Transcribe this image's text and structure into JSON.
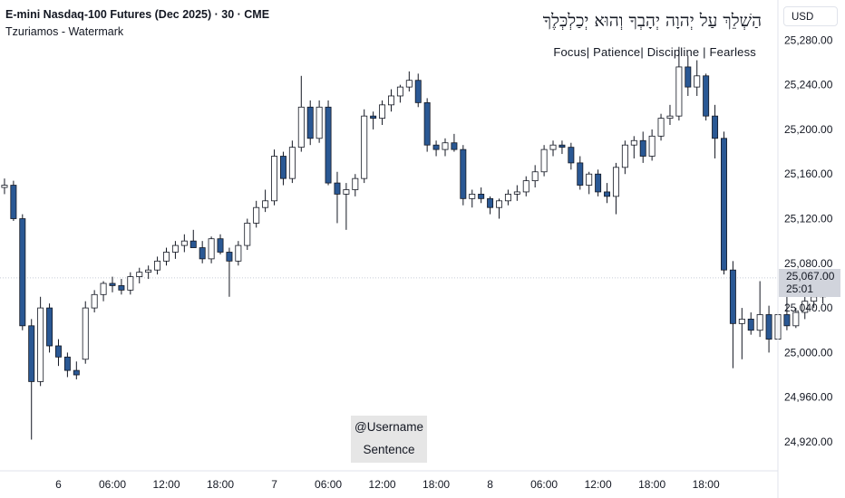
{
  "header": {
    "title": "E-mini Nasdaq-100 Futures (Dec 2025) · 30 · CME",
    "subtitle": "Tzuriamos - Watermark",
    "hebrew_text": "הַשְׁלֵךְ עַל יְהוָה יְהָבְךָ וְהוּא יְכַלְכְּלֶךָ",
    "motto": "Focus| Patience| Discipline | Fearless"
  },
  "price_scale": {
    "currency": "USD",
    "current_price": "25,067.00",
    "countdown": "25:01"
  },
  "watermark": {
    "line1": "@Username",
    "line2": "Sentence"
  },
  "colors": {
    "down_candle": "#2a5894",
    "up_candle": "#ffffff",
    "wick": "#131722",
    "grid": "#f0f3fa"
  },
  "chart_data": {
    "type": "candlestick",
    "title": "E-mini Nasdaq-100 Futures (Dec 2025) · 30 · CME",
    "y_axis": {
      "ticks": [
        24920,
        24960,
        25000,
        25040,
        25080,
        25120,
        25160,
        25200,
        25240,
        25280
      ],
      "tick_labels": [
        "24,920.00",
        "24,960.00",
        "25,000.00",
        "25,040.00",
        "25,080.00",
        "25,120.00",
        "25,160.00",
        "25,200.00",
        "25,240.00",
        "25,280.00"
      ],
      "ylim": [
        24894,
        25316
      ]
    },
    "x_axis": {
      "ticks": [
        6,
        12,
        18,
        24,
        30,
        36,
        42,
        48,
        54,
        60,
        66,
        72,
        78
      ],
      "tick_labels": [
        "6",
        "06:00",
        "12:00",
        "18:00",
        "7",
        "06:00",
        "12:00",
        "18:00",
        "8",
        "06:00",
        "12:00",
        "18:00",
        "18:00"
      ],
      "xlim": [
        -0.5,
        86
      ],
      "bar_interval": "30 min"
    },
    "current_price": 25067,
    "candles": [
      {
        "o": 25148,
        "h": 25156,
        "l": 25142,
        "c": 25150
      },
      {
        "o": 25150,
        "h": 25154,
        "l": 25118,
        "c": 25120
      },
      {
        "o": 25120,
        "h": 25124,
        "l": 25020,
        "c": 25024
      },
      {
        "o": 25024,
        "h": 25030,
        "l": 24922,
        "c": 24974
      },
      {
        "o": 24974,
        "h": 25050,
        "l": 24970,
        "c": 25040
      },
      {
        "o": 25040,
        "h": 25044,
        "l": 25000,
        "c": 25006
      },
      {
        "o": 25006,
        "h": 25012,
        "l": 24988,
        "c": 24996
      },
      {
        "o": 24996,
        "h": 25000,
        "l": 24978,
        "c": 24984
      },
      {
        "o": 24984,
        "h": 24992,
        "l": 24976,
        "c": 24980
      },
      {
        "o": 24994,
        "h": 25046,
        "l": 24990,
        "c": 25040
      },
      {
        "o": 25040,
        "h": 25056,
        "l": 25036,
        "c": 25052
      },
      {
        "o": 25052,
        "h": 25064,
        "l": 25046,
        "c": 25062
      },
      {
        "o": 25062,
        "h": 25068,
        "l": 25054,
        "c": 25060
      },
      {
        "o": 25060,
        "h": 25066,
        "l": 25052,
        "c": 25056
      },
      {
        "o": 25056,
        "h": 25072,
        "l": 25052,
        "c": 25068
      },
      {
        "o": 25068,
        "h": 25076,
        "l": 25062,
        "c": 25072
      },
      {
        "o": 25072,
        "h": 25078,
        "l": 25066,
        "c": 25074
      },
      {
        "o": 25074,
        "h": 25086,
        "l": 25070,
        "c": 25082
      },
      {
        "o": 25082,
        "h": 25094,
        "l": 25078,
        "c": 25090
      },
      {
        "o": 25090,
        "h": 25100,
        "l": 25084,
        "c": 25096
      },
      {
        "o": 25096,
        "h": 25106,
        "l": 25090,
        "c": 25100
      },
      {
        "o": 25100,
        "h": 25110,
        "l": 25094,
        "c": 25094
      },
      {
        "o": 25094,
        "h": 25100,
        "l": 25080,
        "c": 25084
      },
      {
        "o": 25084,
        "h": 25104,
        "l": 25080,
        "c": 25102
      },
      {
        "o": 25102,
        "h": 25106,
        "l": 25088,
        "c": 25090
      },
      {
        "o": 25090,
        "h": 25094,
        "l": 25050,
        "c": 25082
      },
      {
        "o": 25082,
        "h": 25100,
        "l": 25078,
        "c": 25096
      },
      {
        "o": 25096,
        "h": 25120,
        "l": 25092,
        "c": 25116
      },
      {
        "o": 25116,
        "h": 25136,
        "l": 25112,
        "c": 25130
      },
      {
        "o": 25130,
        "h": 25146,
        "l": 25126,
        "c": 25136
      },
      {
        "o": 25136,
        "h": 25182,
        "l": 25132,
        "c": 25176
      },
      {
        "o": 25176,
        "h": 25180,
        "l": 25150,
        "c": 25156
      },
      {
        "o": 25156,
        "h": 25190,
        "l": 25152,
        "c": 25184
      },
      {
        "o": 25184,
        "h": 25248,
        "l": 25180,
        "c": 25220
      },
      {
        "o": 25220,
        "h": 25226,
        "l": 25186,
        "c": 25192
      },
      {
        "o": 25192,
        "h": 25226,
        "l": 25188,
        "c": 25220
      },
      {
        "o": 25220,
        "h": 25226,
        "l": 25150,
        "c": 25152
      },
      {
        "o": 25152,
        "h": 25162,
        "l": 25116,
        "c": 25142
      },
      {
        "o": 25142,
        "h": 25152,
        "l": 25110,
        "c": 25146
      },
      {
        "o": 25146,
        "h": 25160,
        "l": 25140,
        "c": 25156
      },
      {
        "o": 25156,
        "h": 25218,
        "l": 25152,
        "c": 25212
      },
      {
        "o": 25212,
        "h": 25216,
        "l": 25200,
        "c": 25210
      },
      {
        "o": 25210,
        "h": 25226,
        "l": 25204,
        "c": 25222
      },
      {
        "o": 25222,
        "h": 25236,
        "l": 25216,
        "c": 25230
      },
      {
        "o": 25230,
        "h": 25240,
        "l": 25224,
        "c": 25238
      },
      {
        "o": 25238,
        "h": 25252,
        "l": 25234,
        "c": 25244
      },
      {
        "o": 25244,
        "h": 25250,
        "l": 25220,
        "c": 25224
      },
      {
        "o": 25224,
        "h": 25228,
        "l": 25180,
        "c": 25186
      },
      {
        "o": 25186,
        "h": 25190,
        "l": 25176,
        "c": 25182
      },
      {
        "o": 25182,
        "h": 25192,
        "l": 25176,
        "c": 25188
      },
      {
        "o": 25188,
        "h": 25196,
        "l": 25180,
        "c": 25182
      },
      {
        "o": 25182,
        "h": 25186,
        "l": 25132,
        "c": 25138
      },
      {
        "o": 25138,
        "h": 25146,
        "l": 25130,
        "c": 25142
      },
      {
        "o": 25142,
        "h": 25148,
        "l": 25134,
        "c": 25138
      },
      {
        "o": 25138,
        "h": 25140,
        "l": 25124,
        "c": 25130
      },
      {
        "o": 25130,
        "h": 25138,
        "l": 25120,
        "c": 25136
      },
      {
        "o": 25136,
        "h": 25146,
        "l": 25132,
        "c": 25142
      },
      {
        "o": 25142,
        "h": 25150,
        "l": 25136,
        "c": 25144
      },
      {
        "o": 25144,
        "h": 25158,
        "l": 25140,
        "c": 25154
      },
      {
        "o": 25154,
        "h": 25168,
        "l": 25148,
        "c": 25162
      },
      {
        "o": 25162,
        "h": 25186,
        "l": 25158,
        "c": 25182
      },
      {
        "o": 25182,
        "h": 25190,
        "l": 25176,
        "c": 25186
      },
      {
        "o": 25186,
        "h": 25190,
        "l": 25178,
        "c": 25184
      },
      {
        "o": 25184,
        "h": 25188,
        "l": 25164,
        "c": 25170
      },
      {
        "o": 25170,
        "h": 25176,
        "l": 25146,
        "c": 25150
      },
      {
        "o": 25150,
        "h": 25162,
        "l": 25142,
        "c": 25160
      },
      {
        "o": 25160,
        "h": 25164,
        "l": 25140,
        "c": 25144
      },
      {
        "o": 25144,
        "h": 25152,
        "l": 25134,
        "c": 25140
      },
      {
        "o": 25140,
        "h": 25170,
        "l": 25124,
        "c": 25166
      },
      {
        "o": 25166,
        "h": 25190,
        "l": 25160,
        "c": 25186
      },
      {
        "o": 25186,
        "h": 25194,
        "l": 25174,
        "c": 25190
      },
      {
        "o": 25190,
        "h": 25198,
        "l": 25170,
        "c": 25176
      },
      {
        "o": 25176,
        "h": 25200,
        "l": 25172,
        "c": 25194
      },
      {
        "o": 25194,
        "h": 25214,
        "l": 25190,
        "c": 25210
      },
      {
        "o": 25210,
        "h": 25222,
        "l": 25204,
        "c": 25212
      },
      {
        "o": 25212,
        "h": 25274,
        "l": 25208,
        "c": 25256
      },
      {
        "o": 25256,
        "h": 25266,
        "l": 25230,
        "c": 25238
      },
      {
        "o": 25238,
        "h": 25262,
        "l": 25230,
        "c": 25248
      },
      {
        "o": 25248,
        "h": 25250,
        "l": 25208,
        "c": 25212
      },
      {
        "o": 25212,
        "h": 25222,
        "l": 25174,
        "c": 25192
      },
      {
        "o": 25192,
        "h": 25198,
        "l": 25070,
        "c": 25074
      },
      {
        "o": 25074,
        "h": 25082,
        "l": 24986,
        "c": 25026
      },
      {
        "o": 25026,
        "h": 25040,
        "l": 24994,
        "c": 25030
      },
      {
        "o": 25030,
        "h": 25036,
        "l": 25016,
        "c": 25020
      },
      {
        "o": 25020,
        "h": 25064,
        "l": 25014,
        "c": 25034
      },
      {
        "o": 25034,
        "h": 25042,
        "l": 25000,
        "c": 25012
      },
      {
        "o": 25012,
        "h": 25040,
        "l": 24990,
        "c": 25034
      },
      {
        "o": 25034,
        "h": 25050,
        "l": 25020,
        "c": 25024
      },
      {
        "o": 25024,
        "h": 25040,
        "l": 25022,
        "c": 25036
      },
      {
        "o": 25036,
        "h": 25050,
        "l": 25030,
        "c": 25046
      },
      {
        "o": 25046,
        "h": 25052,
        "l": 25040,
        "c": 25050
      },
      {
        "o": 25050,
        "h": 25070,
        "l": 25044,
        "c": 25056
      },
      {
        "o": 25056,
        "h": 25070,
        "l": 25054,
        "c": 25066
      }
    ]
  }
}
